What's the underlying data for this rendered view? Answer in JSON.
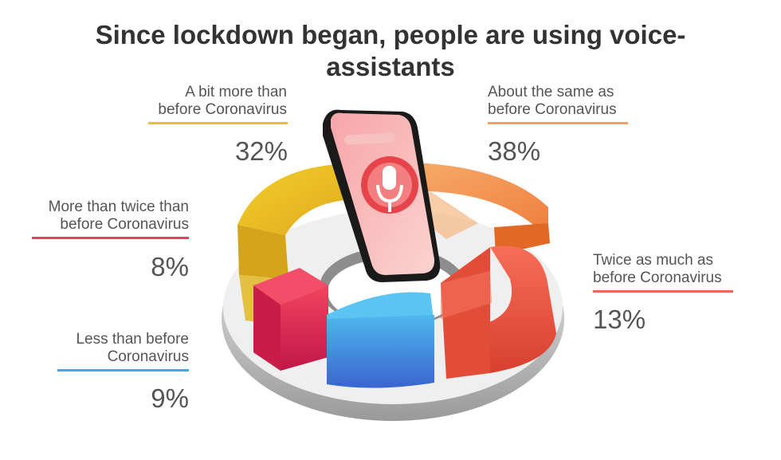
{
  "title": {
    "line1": "Since lockdown began, people are using voice-",
    "line2": "assistants"
  },
  "chart_data": {
    "type": "pie",
    "title": "Since lockdown began, people are using voice-assistants",
    "unit": "%",
    "slices": [
      {
        "key": "bit_more",
        "label_lines": [
          "A bit more than",
          "before Coronavirus"
        ],
        "value": 32,
        "value_label": "32%",
        "color": "#e9c220"
      },
      {
        "key": "about_same",
        "label_lines": [
          "About the same as",
          "before Coronavirus"
        ],
        "value": 38,
        "value_label": "38%",
        "color": "#f5a05b"
      },
      {
        "key": "more_twice",
        "label_lines": [
          "More than twice than",
          "before Coronavirus"
        ],
        "value": 8,
        "value_label": "8%",
        "color": "#ec3d63"
      },
      {
        "key": "twice",
        "label_lines": [
          "Twice as much as",
          "before Coronavirus"
        ],
        "value": 13,
        "value_label": "13%",
        "color": "#ee6a4c"
      },
      {
        "key": "less",
        "label_lines": [
          "Less than before",
          "Coronavirus"
        ],
        "value": 9,
        "value_label": "9%",
        "color": "#3aa9e4"
      }
    ]
  },
  "icons": {
    "phone": "smartphone-icon",
    "mic": "microphone-icon"
  }
}
